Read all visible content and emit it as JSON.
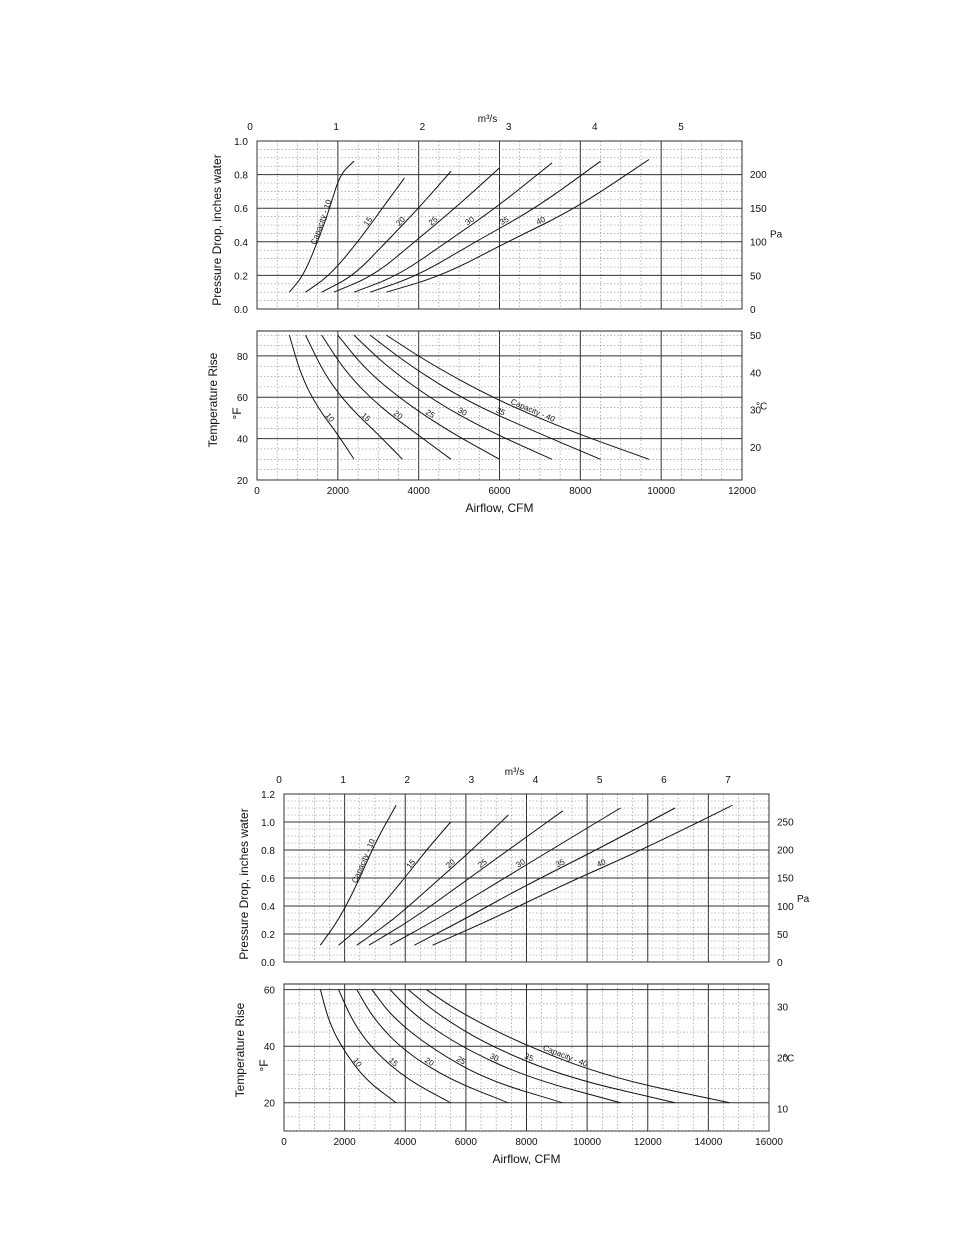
{
  "chart_data": [
    {
      "type": "line",
      "top_axis": {
        "label": "m³/s",
        "ticks": [
          "0",
          "1",
          "2",
          "3",
          "4",
          "5"
        ]
      },
      "xlabel": "Airflow, CFM",
      "xticks": [
        "0",
        "2000",
        "4000",
        "6000",
        "8000",
        "10000",
        "12000"
      ],
      "xlim": [
        0,
        12000
      ],
      "pressure_panel": {
        "ylabel": "Pressure Drop, inches water",
        "yticks": [
          "0.0",
          "0.2",
          "0.4",
          "0.6",
          "0.8",
          "1.0"
        ],
        "ylim": [
          0,
          1.0
        ],
        "right_unit": "Pa",
        "right_ticks": [
          "0",
          "50",
          "100",
          "150",
          "200"
        ],
        "series": [
          {
            "name": "Capacity - 10",
            "points": [
              [
                800,
                0.1
              ],
              [
                1150,
                0.2
              ],
              [
                1500,
                0.4
              ],
              [
                1800,
                0.6
              ],
              [
                2050,
                0.8
              ],
              [
                2400,
                0.88
              ]
            ]
          },
          {
            "name": "15",
            "points": [
              [
                1200,
                0.1
              ],
              [
                1800,
                0.2
              ],
              [
                2500,
                0.4
              ],
              [
                3100,
                0.6
              ],
              [
                3650,
                0.78
              ]
            ]
          },
          {
            "name": "20",
            "points": [
              [
                1600,
                0.1
              ],
              [
                2400,
                0.2
              ],
              [
                3200,
                0.4
              ],
              [
                4000,
                0.6
              ],
              [
                4800,
                0.82
              ]
            ]
          },
          {
            "name": "25",
            "points": [
              [
                1900,
                0.1
              ],
              [
                2900,
                0.2
              ],
              [
                3900,
                0.4
              ],
              [
                4900,
                0.6
              ],
              [
                6000,
                0.84
              ]
            ]
          },
          {
            "name": "30",
            "points": [
              [
                2400,
                0.1
              ],
              [
                3500,
                0.2
              ],
              [
                4700,
                0.4
              ],
              [
                5900,
                0.6
              ],
              [
                7300,
                0.87
              ]
            ]
          },
          {
            "name": "35",
            "points": [
              [
                2800,
                0.1
              ],
              [
                4000,
                0.2
              ],
              [
                5400,
                0.4
              ],
              [
                6900,
                0.6
              ],
              [
                8500,
                0.88
              ]
            ]
          },
          {
            "name": "40",
            "points": [
              [
                3200,
                0.1
              ],
              [
                4600,
                0.2
              ],
              [
                6200,
                0.4
              ],
              [
                7900,
                0.6
              ],
              [
                9700,
                0.89
              ]
            ]
          }
        ],
        "series_labels": [
          "Capacity - 10",
          "15",
          "20",
          "25",
          "30",
          "35",
          "40"
        ]
      },
      "temperature_panel": {
        "ylabel": "Temperature Rise",
        "unit_f": "°F",
        "yticks": [
          "20",
          "40",
          "60",
          "80"
        ],
        "ylim": [
          20,
          92
        ],
        "right_unit": "°C",
        "right_ticks": [
          "20",
          "30",
          "40",
          "50"
        ],
        "series": [
          {
            "name": "10",
            "points": [
              [
                800,
                90
              ],
              [
                1100,
                70
              ],
              [
                1500,
                55
              ],
              [
                2000,
                42
              ],
              [
                2400,
                30
              ]
            ]
          },
          {
            "name": "15",
            "points": [
              [
                1200,
                90
              ],
              [
                1700,
                70
              ],
              [
                2300,
                55
              ],
              [
                3000,
                42
              ],
              [
                3600,
                30
              ]
            ]
          },
          {
            "name": "20",
            "points": [
              [
                1600,
                90
              ],
              [
                2200,
                72
              ],
              [
                3000,
                56
              ],
              [
                3900,
                43
              ],
              [
                4800,
                30
              ]
            ]
          },
          {
            "name": "25",
            "points": [
              [
                2000,
                90
              ],
              [
                2700,
                73
              ],
              [
                3700,
                57
              ],
              [
                4800,
                43
              ],
              [
                6000,
                30
              ]
            ]
          },
          {
            "name": "30",
            "points": [
              [
                2400,
                90
              ],
              [
                3200,
                75
              ],
              [
                4400,
                58
              ],
              [
                5700,
                44
              ],
              [
                7300,
                30
              ]
            ]
          },
          {
            "name": "35",
            "points": [
              [
                2800,
                90
              ],
              [
                3800,
                75
              ],
              [
                5200,
                58
              ],
              [
                6800,
                44
              ],
              [
                8500,
                30
              ]
            ]
          },
          {
            "name": "Capacity - 40",
            "points": [
              [
                3200,
                90
              ],
              [
                4300,
                76
              ],
              [
                5900,
                59
              ],
              [
                7700,
                44
              ],
              [
                9700,
                30
              ]
            ]
          }
        ],
        "series_labels": [
          "10",
          "15",
          "20",
          "25",
          "30",
          "35",
          "Capacity - 40"
        ]
      }
    },
    {
      "type": "line",
      "top_axis": {
        "label": "m³/s",
        "ticks": [
          "0",
          "1",
          "2",
          "3",
          "4",
          "5",
          "6",
          "7"
        ]
      },
      "xlabel": "Airflow, CFM",
      "xticks": [
        "0",
        "2000",
        "4000",
        "6000",
        "8000",
        "10000",
        "12000",
        "14000",
        "16000"
      ],
      "xlim": [
        0,
        16000
      ],
      "pressure_panel": {
        "ylabel": "Pressure Drop, inches water",
        "yticks": [
          "0.0",
          "0.2",
          "0.4",
          "0.6",
          "0.8",
          "1.0",
          "1.2"
        ],
        "ylim": [
          0,
          1.2
        ],
        "right_unit": "Pa",
        "right_ticks": [
          "0",
          "50",
          "100",
          "150",
          "200",
          "250"
        ],
        "series": [
          {
            "name": "Capacity - 10",
            "points": [
              [
                1200,
                0.12
              ],
              [
                1800,
                0.3
              ],
              [
                2400,
                0.55
              ],
              [
                3000,
                0.85
              ],
              [
                3700,
                1.12
              ]
            ]
          },
          {
            "name": "15",
            "points": [
              [
                1800,
                0.12
              ],
              [
                2800,
                0.3
              ],
              [
                3800,
                0.55
              ],
              [
                4700,
                0.8
              ],
              [
                5500,
                1.0
              ]
            ]
          },
          {
            "name": "20",
            "points": [
              [
                2400,
                0.12
              ],
              [
                3600,
                0.3
              ],
              [
                4900,
                0.55
              ],
              [
                6200,
                0.8
              ],
              [
                7400,
                1.05
              ]
            ]
          },
          {
            "name": "25",
            "points": [
              [
                2800,
                0.12
              ],
              [
                4200,
                0.3
              ],
              [
                5800,
                0.55
              ],
              [
                7400,
                0.8
              ],
              [
                9200,
                1.08
              ]
            ]
          },
          {
            "name": "30",
            "points": [
              [
                3500,
                0.12
              ],
              [
                5000,
                0.3
              ],
              [
                6900,
                0.55
              ],
              [
                8800,
                0.8
              ],
              [
                11100,
                1.1
              ]
            ]
          },
          {
            "name": "35",
            "points": [
              [
                4300,
                0.12
              ],
              [
                5900,
                0.3
              ],
              [
                8000,
                0.55
              ],
              [
                10300,
                0.8
              ],
              [
                12900,
                1.1
              ]
            ]
          },
          {
            "name": "40",
            "points": [
              [
                4900,
                0.12
              ],
              [
                6800,
                0.3
              ],
              [
                9200,
                0.55
              ],
              [
                11800,
                0.8
              ],
              [
                14800,
                1.12
              ]
            ]
          }
        ],
        "series_labels": [
          "Capacity - 10",
          "15",
          "20",
          "25",
          "30",
          "35",
          "40"
        ]
      },
      "temperature_panel": {
        "ylabel": "Temperature Rise",
        "unit_f": "°F",
        "yticks": [
          "20",
          "40",
          "60"
        ],
        "ylim": [
          10,
          60
        ],
        "right_unit": "°C",
        "right_ticks": [
          "10",
          "20",
          "30"
        ],
        "series": [
          {
            "name": "10",
            "points": [
              [
                1200,
                60
              ],
              [
                1500,
                48
              ],
              [
                2000,
                38
              ],
              [
                2700,
                28
              ],
              [
                3700,
                20
              ]
            ]
          },
          {
            "name": "15",
            "points": [
              [
                1800,
                60
              ],
              [
                2300,
                48
              ],
              [
                3000,
                38
              ],
              [
                4100,
                28
              ],
              [
                5500,
                20
              ]
            ]
          },
          {
            "name": "20",
            "points": [
              [
                2400,
                60
              ],
              [
                3000,
                49
              ],
              [
                4000,
                38
              ],
              [
                5500,
                28
              ],
              [
                7400,
                20
              ]
            ]
          },
          {
            "name": "25",
            "points": [
              [
                2900,
                60
              ],
              [
                3600,
                50
              ],
              [
                4900,
                39
              ],
              [
                6700,
                28
              ],
              [
                9200,
                20
              ]
            ]
          },
          {
            "name": "30",
            "points": [
              [
                3500,
                60
              ],
              [
                4300,
                51
              ],
              [
                5800,
                40
              ],
              [
                8000,
                29
              ],
              [
                11100,
                20
              ]
            ]
          },
          {
            "name": "35",
            "points": [
              [
                4100,
                60
              ],
              [
                5100,
                51
              ],
              [
                6800,
                40
              ],
              [
                9300,
                29
              ],
              [
                12900,
                20
              ]
            ]
          },
          {
            "name": "Capacity - 40",
            "points": [
              [
                4700,
                60
              ],
              [
                5800,
                52
              ],
              [
                7800,
                41
              ],
              [
                10700,
                29
              ],
              [
                14700,
                20
              ]
            ]
          }
        ],
        "series_labels": [
          "10",
          "15",
          "20",
          "25",
          "30",
          "35",
          "Capacity - 40"
        ]
      }
    }
  ]
}
